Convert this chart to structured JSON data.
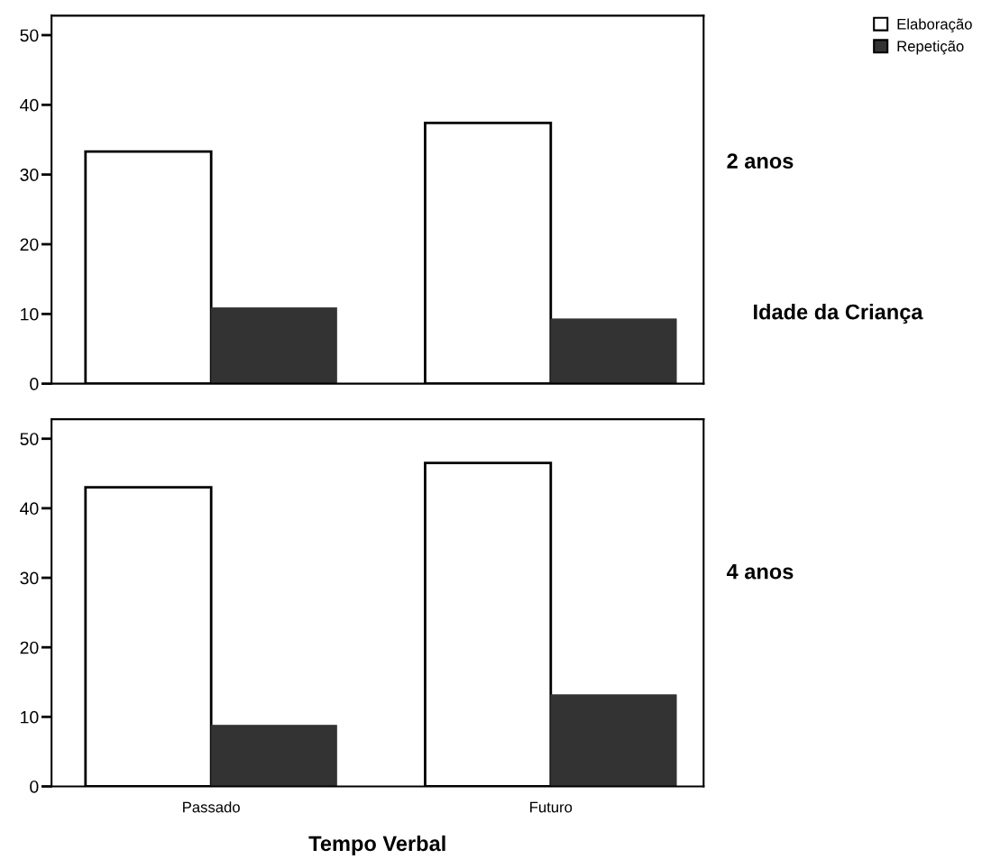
{
  "chart_data": [
    {
      "type": "bar",
      "categories": [
        null,
        null
      ],
      "series": [
        {
          "name": "Elaboração",
          "color": "#ffffff",
          "values": [
            33.3,
            37.4
          ]
        },
        {
          "name": "Repetição",
          "color": "#333333",
          "values": [
            10.9,
            9.3
          ]
        }
      ],
      "ylim": [
        0,
        52.8
      ],
      "yticks": [
        0,
        10,
        20,
        30,
        40,
        50
      ],
      "tick_labels": "y",
      "legend": "top right",
      "grid": false,
      "annotations": [
        "2 anos",
        "Idade da Criança"
      ]
    },
    {
      "type": "bar",
      "categories": [
        "Passado",
        "Futuro"
      ],
      "xlabel": "Tempo Verbal",
      "series": [
        {
          "color": "#ffffff",
          "values": [
            43.0,
            46.5
          ]
        },
        {
          "color": "#333333",
          "values": [
            8.8,
            13.2
          ]
        }
      ],
      "ylim": [
        0,
        52.8
      ],
      "yticks": [
        0,
        10,
        20,
        30,
        40,
        50
      ],
      "legend": false,
      "grid": false,
      "annotations": [
        "4 anos"
      ]
    }
  ]
}
